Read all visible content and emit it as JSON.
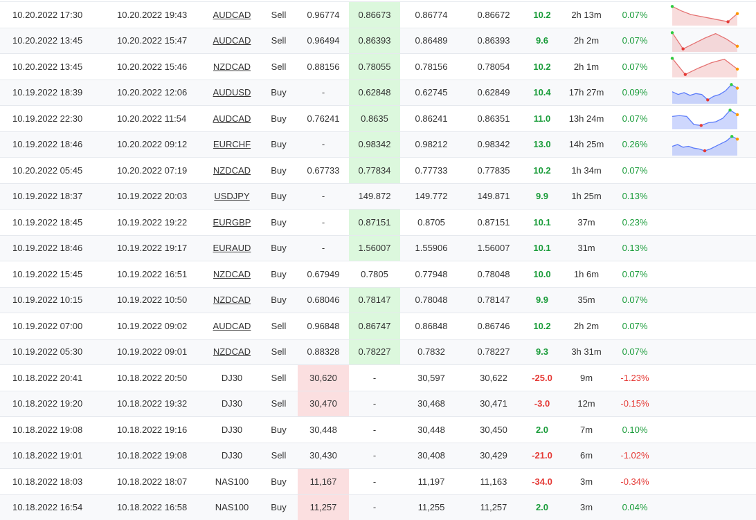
{
  "table": {
    "rows": [
      {
        "cells": [
          "10.20.2022 17:30",
          "10.20.2022 19:43",
          "AUDCAD",
          "Sell",
          "0.96774",
          "0.86673",
          "0.86774",
          "0.86672",
          "10.2",
          "2h 13m",
          "0.07%"
        ],
        "sparkline": [
          95,
          70,
          50,
          40,
          30,
          20,
          10,
          55
        ]
      },
      {
        "cells": [
          "10.20.2022 13:45",
          "10.20.2022 15:47",
          "AUDCAD",
          "Sell",
          "0.96494",
          "0.86393",
          "0.86489",
          "0.86393",
          "9.6",
          "2h 2m",
          "0.07%"
        ],
        "sparkline": [
          95,
          5,
          35,
          65,
          90,
          60,
          20
        ]
      },
      {
        "cells": [
          "10.20.2022 13:45",
          "10.20.2022 15:46",
          "NZDCAD",
          "Sell",
          "0.88156",
          "0.78055",
          "0.78156",
          "0.78054",
          "10.2",
          "2h 1m",
          "0.07%"
        ],
        "sparkline": [
          95,
          5,
          40,
          70,
          90,
          35
        ]
      },
      {
        "cells": [
          "10.19.2022 18:39",
          "10.20.2022 12:06",
          "AUDUSD",
          "Buy",
          "-",
          "0.62848",
          "0.62745",
          "0.62849",
          "10.4",
          "17h 27m",
          "0.09%"
        ],
        "sparkline": [
          55,
          40,
          50,
          35,
          45,
          40,
          10,
          30,
          40,
          60,
          95,
          75
        ]
      },
      {
        "cells": [
          "10.19.2022 22:30",
          "10.20.2022 11:54",
          "AUDCAD",
          "Buy",
          "0.76241",
          "0.8635",
          "0.86241",
          "0.86351",
          "11.0",
          "13h 24m",
          "0.07%"
        ],
        "sparkline": [
          60,
          65,
          60,
          15,
          10,
          25,
          30,
          50,
          95,
          70
        ]
      },
      {
        "cells": [
          "10.19.2022 18:46",
          "10.20.2022 09:12",
          "EURCHF",
          "Buy",
          "-",
          "0.98342",
          "0.98212",
          "0.98342",
          "13.0",
          "14h 25m",
          "0.26%"
        ],
        "sparkline": [
          40,
          50,
          35,
          40,
          30,
          25,
          15,
          25,
          40,
          55,
          70,
          95,
          80
        ]
      },
      {
        "cells": [
          "10.20.2022 05:45",
          "10.20.2022 07:19",
          "NZDCAD",
          "Buy",
          "0.67733",
          "0.77834",
          "0.77733",
          "0.77835",
          "10.2",
          "1h 34m",
          "0.07%"
        ]
      },
      {
        "cells": [
          "10.19.2022 18:37",
          "10.19.2022 20:03",
          "USDJPY",
          "Buy",
          "-",
          "149.872",
          "149.772",
          "149.871",
          "9.9",
          "1h 25m",
          "0.13%"
        ]
      },
      {
        "cells": [
          "10.19.2022 18:45",
          "10.19.2022 19:22",
          "EURGBP",
          "Buy",
          "-",
          "0.87151",
          "0.8705",
          "0.87151",
          "10.1",
          "37m",
          "0.23%"
        ]
      },
      {
        "cells": [
          "10.19.2022 18:46",
          "10.19.2022 19:17",
          "EURAUD",
          "Buy",
          "-",
          "1.56007",
          "1.55906",
          "1.56007",
          "10.1",
          "31m",
          "0.13%"
        ]
      },
      {
        "cells": [
          "10.19.2022 15:45",
          "10.19.2022 16:51",
          "NZDCAD",
          "Buy",
          "0.67949",
          "0.7805",
          "0.77948",
          "0.78048",
          "10.0",
          "1h 6m",
          "0.07%"
        ]
      },
      {
        "cells": [
          "10.19.2022 10:15",
          "10.19.2022 10:50",
          "NZDCAD",
          "Buy",
          "0.68046",
          "0.78147",
          "0.78048",
          "0.78147",
          "9.9",
          "35m",
          "0.07%"
        ]
      },
      {
        "cells": [
          "10.19.2022 07:00",
          "10.19.2022 09:02",
          "AUDCAD",
          "Sell",
          "0.96848",
          "0.86747",
          "0.86848",
          "0.86746",
          "10.2",
          "2h 2m",
          "0.07%"
        ]
      },
      {
        "cells": [
          "10.19.2022 05:30",
          "10.19.2022 09:01",
          "NZDCAD",
          "Sell",
          "0.88328",
          "0.78227",
          "0.7832",
          "0.78227",
          "9.3",
          "3h 31m",
          "0.07%"
        ]
      },
      {
        "cells": [
          "10.18.2022 20:41",
          "10.18.2022 20:50",
          "DJ30",
          "Sell",
          "30,620",
          "-",
          "30,597",
          "30,622",
          "-25.0",
          "9m",
          "-1.23%"
        ]
      },
      {
        "cells": [
          "10.18.2022 19:20",
          "10.18.2022 19:32",
          "DJ30",
          "Sell",
          "30,470",
          "-",
          "30,468",
          "30,471",
          "-3.0",
          "12m",
          "-0.15%"
        ]
      },
      {
        "cells": [
          "10.18.2022 19:08",
          "10.18.2022 19:16",
          "DJ30",
          "Buy",
          "30,448",
          "-",
          "30,448",
          "30,450",
          "2.0",
          "7m",
          "0.10%"
        ]
      },
      {
        "cells": [
          "10.18.2022 19:01",
          "10.18.2022 19:08",
          "DJ30",
          "Sell",
          "30,430",
          "-",
          "30,408",
          "30,429",
          "-21.0",
          "6m",
          "-1.02%"
        ]
      },
      {
        "cells": [
          "10.18.2022 18:03",
          "10.18.2022 18:07",
          "NAS100",
          "Buy",
          "11,167",
          "-",
          "11,197",
          "11,163",
          "-34.0",
          "3m",
          "-0.34%"
        ]
      },
      {
        "cells": [
          "10.18.2022 16:54",
          "10.18.2022 16:58",
          "NAS100",
          "Buy",
          "11,257",
          "-",
          "11,255",
          "11,257",
          "2.0",
          "3m",
          "0.04%"
        ]
      }
    ]
  }
}
